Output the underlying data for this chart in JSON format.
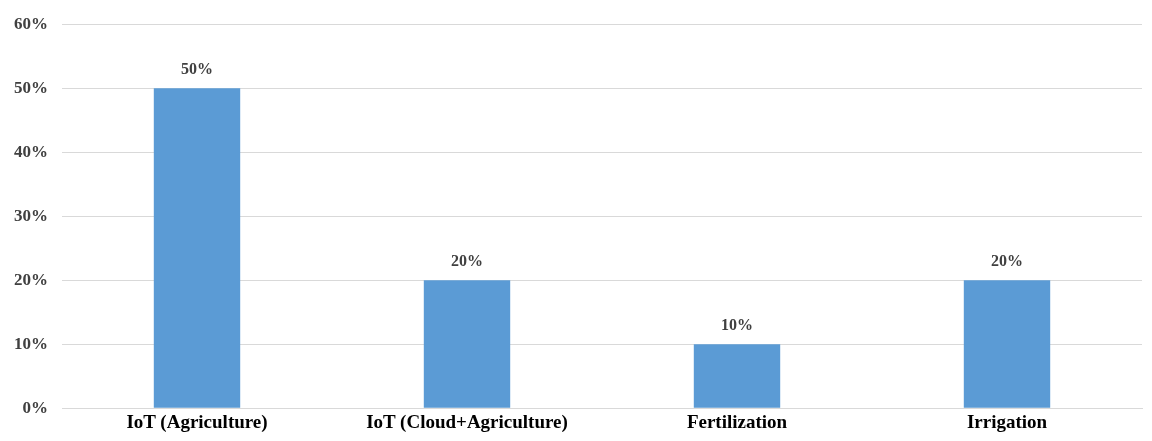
{
  "chart_data": {
    "type": "bar",
    "categories": [
      "IoT (Agriculture)",
      "IoT (Cloud+Agriculture)",
      "Fertilization",
      "Irrigation"
    ],
    "values": [
      50,
      20,
      10,
      20
    ],
    "color": "#5b9bd5",
    "value_labels": [
      "50%",
      "20%",
      "10%",
      "20%"
    ],
    "ylim": [
      0,
      60
    ],
    "yticks": [
      {
        "value": 0,
        "label": "0%"
      },
      {
        "value": 10,
        "label": "10%"
      },
      {
        "value": 20,
        "label": "20%"
      },
      {
        "value": 30,
        "label": "30%"
      },
      {
        "value": 40,
        "label": "40%"
      },
      {
        "value": 50,
        "label": "50%"
      },
      {
        "value": 60,
        "label": "60%"
      }
    ],
    "grid": "y",
    "legend": false
  }
}
